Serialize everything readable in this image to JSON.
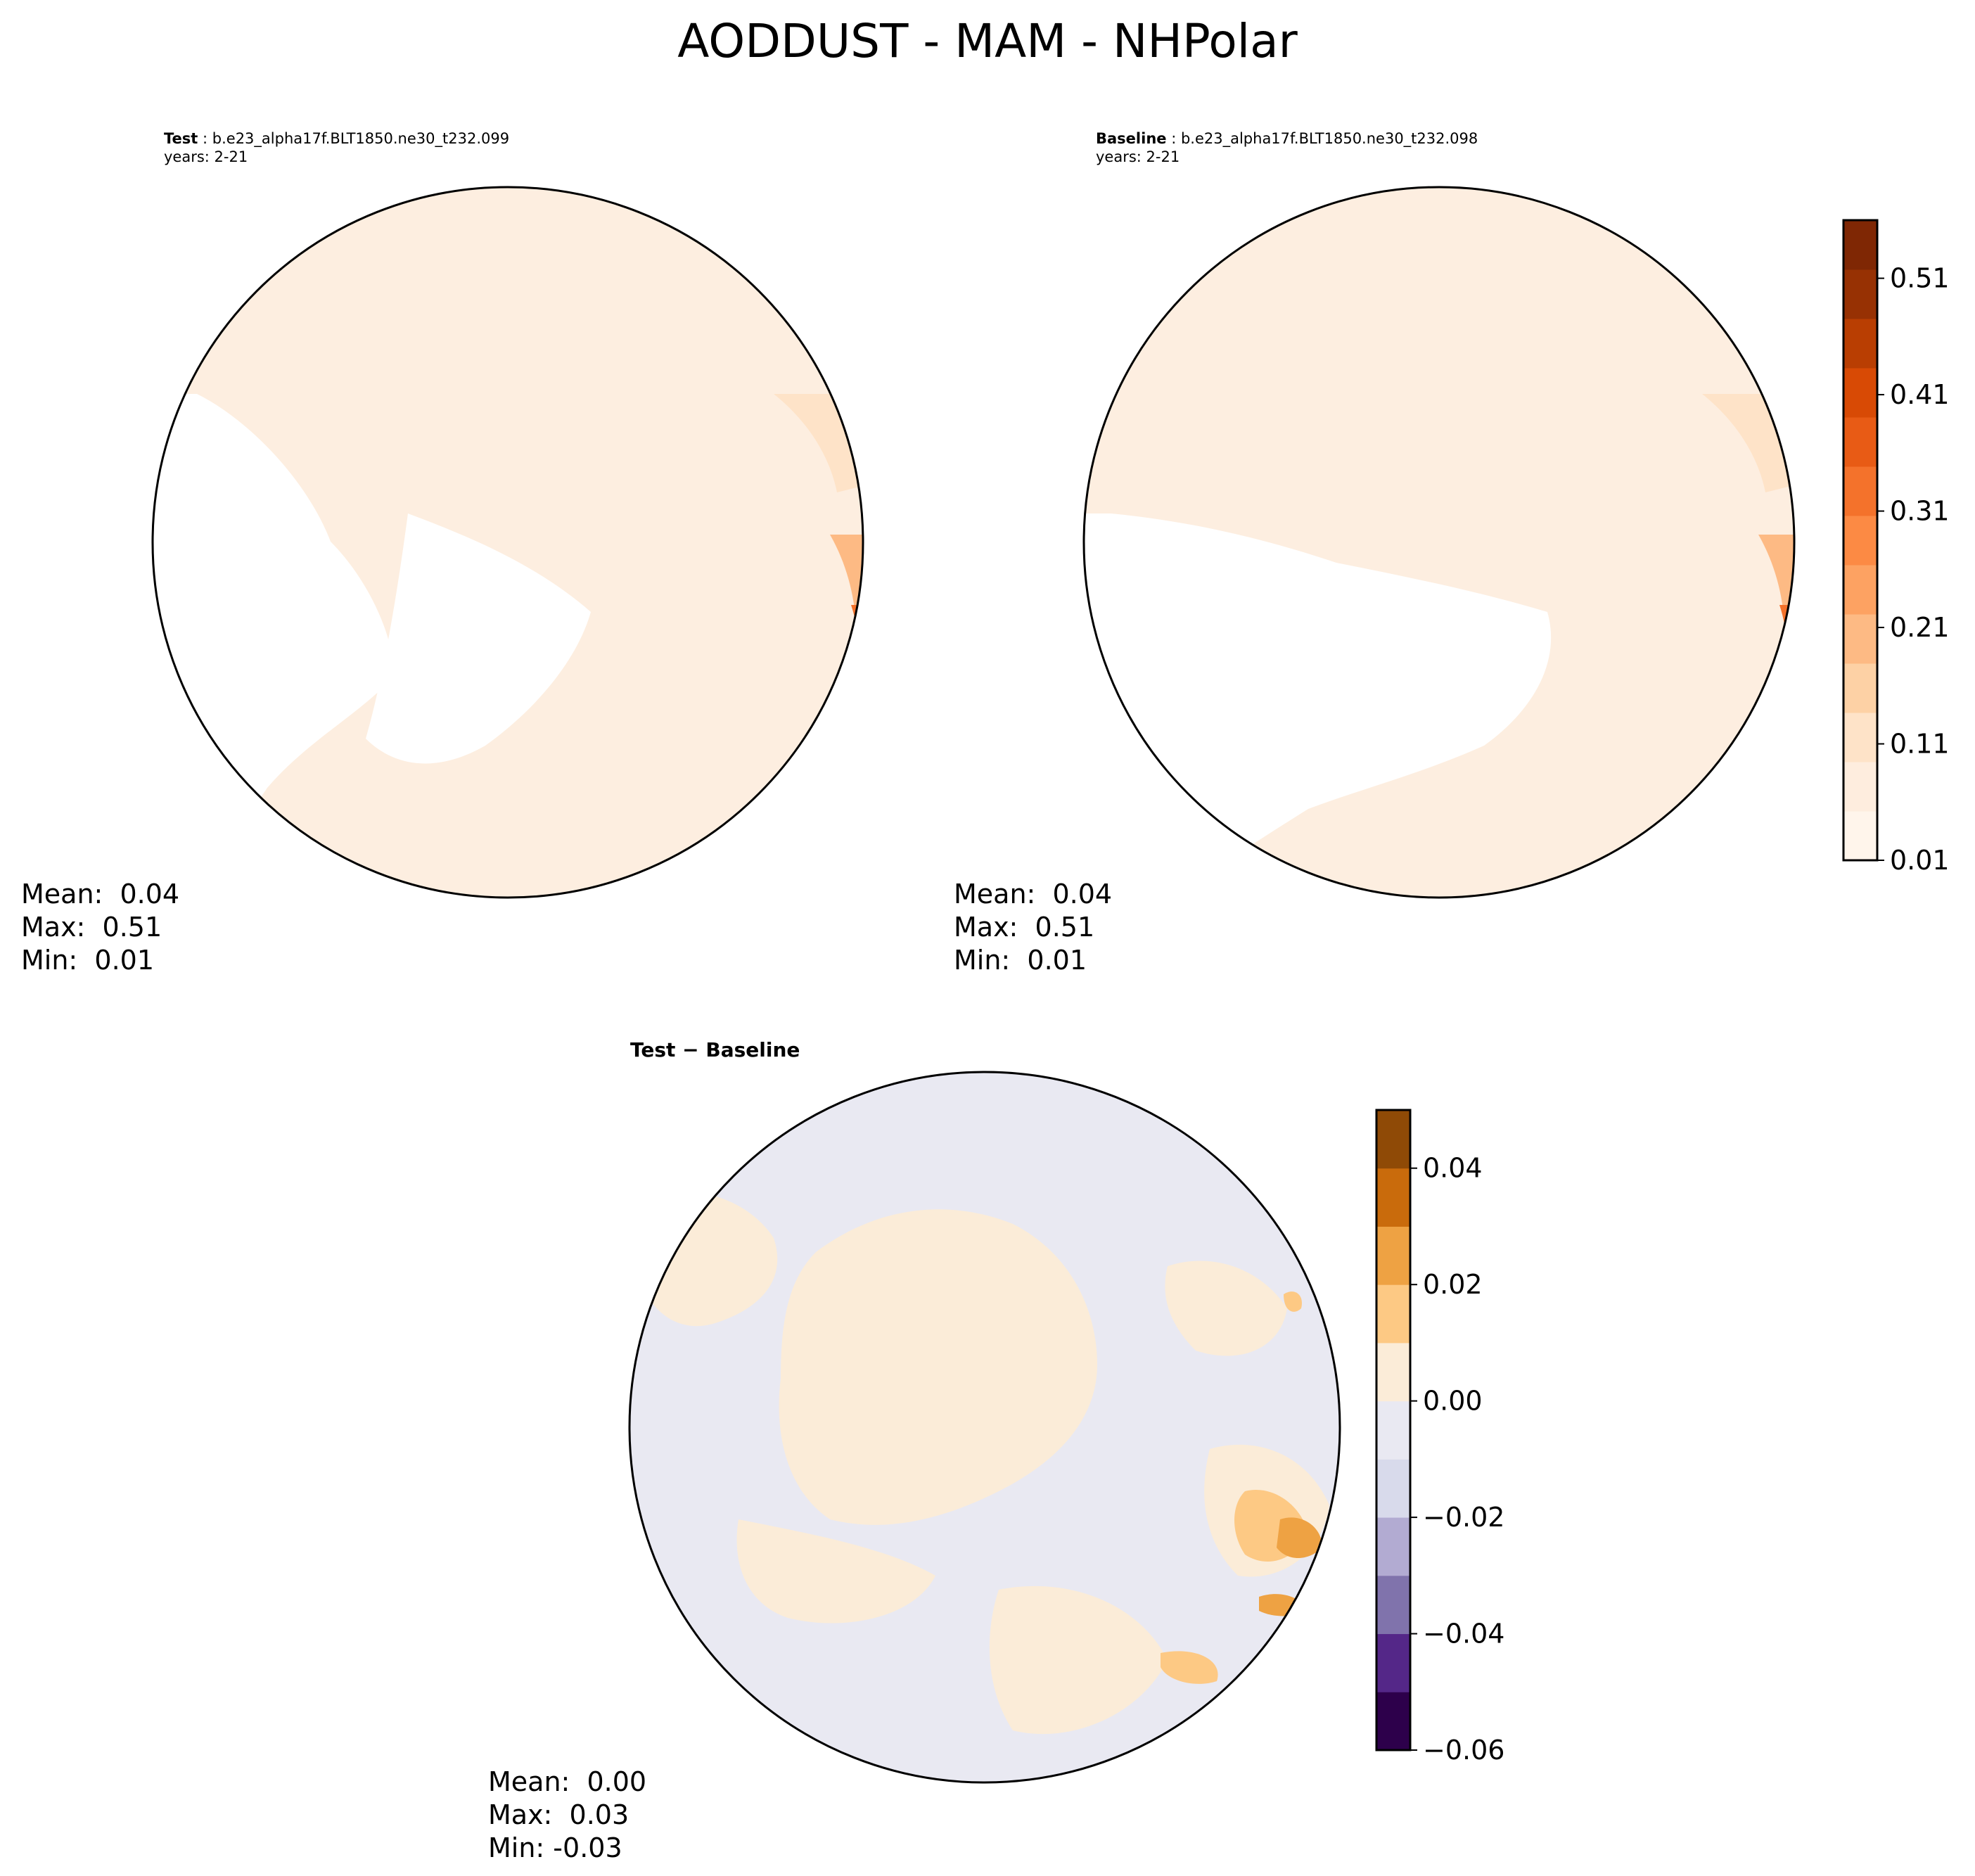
{
  "figure": {
    "title": "AODDUST - MAM - NHPolar"
  },
  "panels": {
    "test": {
      "label": "Test",
      "case": "b.e23_alpha17f.BLT1850.ne30_t232.099",
      "years": "years: 2-21",
      "stats": {
        "mean": "Mean:  0.04",
        "max": "Max:  0.51",
        "min": "Min:  0.01"
      }
    },
    "baseline": {
      "label": "Baseline",
      "case": "b.e23_alpha17f.BLT1850.ne30_t232.098",
      "years": "years: 2-21",
      "stats": {
        "mean": "Mean:  0.04",
        "max": "Max:  0.51",
        "min": "Min:  0.01"
      }
    },
    "difference": {
      "label": "Test − Baseline",
      "stats": {
        "mean": "Mean:  0.00",
        "max": "Max:  0.03",
        "min": "Min: -0.03"
      }
    }
  },
  "colorbars": {
    "absolute": {
      "colormap": "Oranges",
      "ticks": [
        "0.01",
        "0.11",
        "0.21",
        "0.31",
        "0.41",
        "0.51"
      ],
      "levels": [
        "#fff5eb",
        "#feedde",
        "#fee3c8",
        "#fdd1a5",
        "#fdba84",
        "#fda262",
        "#fc8a44",
        "#f4722b",
        "#e85b15",
        "#d84a05",
        "#b93e02",
        "#973103",
        "#7f2704"
      ]
    },
    "difference": {
      "colormap": "PuOr_r",
      "ticks": [
        "−0.06",
        "−0.04",
        "−0.02",
        "0.00",
        "0.02",
        "0.04"
      ],
      "levels": [
        "#2d004b",
        "#542788",
        "#8073ac",
        "#b2abd2",
        "#d8daeb",
        "#e9e9f2",
        "#fbecd8",
        "#fdc984",
        "#eea243",
        "#c96b0c",
        "#8f4a06"
      ]
    }
  },
  "map_colors": {
    "land_outline": "#000000",
    "no_data": "#ffffff",
    "low_value": "#fdeee0",
    "diff_neutral": "#e9e9f2",
    "diff_positive": "#fbecd8"
  }
}
